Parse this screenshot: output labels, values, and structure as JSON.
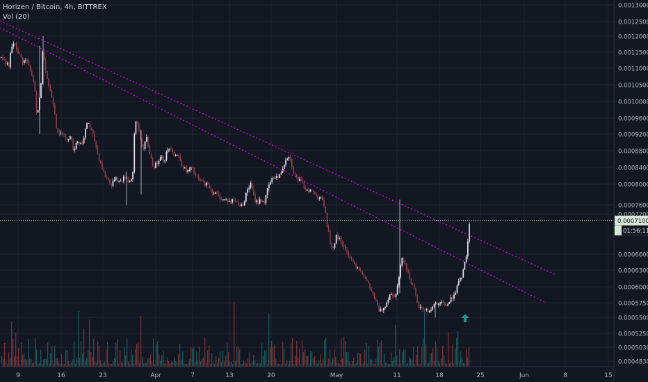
{
  "legend": {
    "title": "Horizen / Bitcoin, 4h, BITTREX",
    "volume": "Vol (20)"
  },
  "chart_data": {
    "type": "candlestick",
    "price_axis": {
      "ticks": [
        0.0013,
        0.00125,
        0.0012,
        0.00115,
        0.0011,
        0.00105,
        0.001,
        0.00096,
        0.00092,
        0.00088,
        0.00084,
        0.0008,
        0.00076,
        0.00072,
        0.00066,
        0.00063,
        0.0006,
        0.000575,
        0.00055,
        0.000525,
        0.000503,
        0.000483
      ],
      "tick_labels": [
        "0.00130000",
        "0.00125000",
        "0.00120000",
        "0.00115000",
        "0.00110000",
        "0.00105000",
        "0.00100000",
        "0.00096000",
        "0.00092000",
        "0.00088000",
        "0.00084000",
        "0.00080000",
        "0.00076000",
        "0.00072000",
        "0.00066000",
        "0.00063000",
        "0.00060000",
        "0.00057500",
        "0.00055000",
        "0.00052500",
        "0.00050300",
        "0.00048300"
      ]
    },
    "time_axis": {
      "labels": [
        "9",
        "16",
        "23",
        "Apr",
        "7",
        "13",
        "20",
        "May",
        "11",
        "18",
        "25",
        "Jun",
        "8",
        "15"
      ]
    },
    "last_price": {
      "label": "0.00071000",
      "countdown": "01:56:11",
      "value": 0.00071
    },
    "trendlines": [
      {
        "name": "upper",
        "color": "#d500f9",
        "from": {
          "date": "Mar 3",
          "price": 0.00127
        },
        "to": {
          "date": "Jun 3",
          "price": 0.00062
        }
      },
      {
        "name": "lower",
        "color": "#d500f9",
        "from": {
          "date": "Mar 9",
          "price": 0.0012
        },
        "to": {
          "date": "Jun 3",
          "price": 0.00058
        }
      }
    ],
    "marker": {
      "shape": "arrow-up",
      "color": "#26a69a",
      "date": "May 23",
      "price": 0.00055
    },
    "series": [
      {
        "name": "price",
        "path": [
          [
            0,
            0.001135
          ],
          [
            7,
            0.00112
          ],
          [
            12,
            0.0011
          ],
          [
            15,
            0.00116
          ],
          [
            19,
            0.00118
          ],
          [
            25,
            0.00115
          ],
          [
            32,
            0.00112
          ],
          [
            38,
            0.001125
          ],
          [
            44,
            0.00108
          ],
          [
            48,
            0.00106
          ],
          [
            52,
            0.00096
          ],
          [
            55,
            0.00099
          ],
          [
            58,
            0.00105
          ],
          [
            61,
            0.00117
          ],
          [
            63,
            0.00112
          ],
          [
            66,
            0.00108
          ],
          [
            70,
            0.00104
          ],
          [
            74,
            0.00101
          ],
          [
            77,
            0.00099
          ],
          [
            80,
            0.00094
          ],
          [
            85,
            0.000915
          ],
          [
            90,
            0.00093
          ],
          [
            95,
            0.0009
          ],
          [
            100,
            0.00092
          ],
          [
            105,
            0.00088
          ],
          [
            110,
            0.000905
          ],
          [
            115,
            0.000895
          ],
          [
            120,
            0.00091
          ],
          [
            125,
            0.000955
          ],
          [
            130,
            0.00093
          ],
          [
            135,
            0.000905
          ],
          [
            140,
            0.00087
          ],
          [
            145,
            0.000845
          ],
          [
            150,
            0.00082
          ],
          [
            155,
            0.00081
          ],
          [
            160,
            0.000795
          ],
          [
            165,
            0.00082
          ],
          [
            170,
            0.000805
          ],
          [
            175,
            0.00081
          ],
          [
            180,
            0.00082
          ],
          [
            185,
            0.000805
          ],
          [
            190,
            0.00082
          ],
          [
            193,
            0.00094
          ],
          [
            196,
            0.000955
          ],
          [
            200,
            0.00092
          ],
          [
            205,
            0.00088
          ],
          [
            210,
            0.00091
          ],
          [
            215,
            0.00087
          ],
          [
            220,
            0.00084
          ],
          [
            225,
            0.00085
          ],
          [
            230,
            0.00087
          ],
          [
            235,
            0.000855
          ],
          [
            240,
            0.00088
          ],
          [
            245,
            0.00089
          ],
          [
            250,
            0.00087
          ],
          [
            255,
            0.00087
          ],
          [
            260,
            0.00085
          ],
          [
            265,
            0.000835
          ],
          [
            270,
            0.00083
          ],
          [
            275,
            0.00084
          ],
          [
            280,
            0.00082
          ],
          [
            285,
            0.00081
          ],
          [
            290,
            0.000805
          ],
          [
            295,
            0.0008
          ],
          [
            300,
            0.000795
          ],
          [
            305,
            0.000785
          ],
          [
            310,
            0.00078
          ],
          [
            315,
            0.000775
          ],
          [
            320,
            0.00077
          ],
          [
            325,
            0.00077
          ],
          [
            330,
            0.000765
          ],
          [
            335,
            0.00077
          ],
          [
            340,
            0.000765
          ],
          [
            345,
            0.000755
          ],
          [
            350,
            0.000765
          ],
          [
            355,
            0.00079
          ],
          [
            360,
            0.0008
          ],
          [
            365,
            0.00077
          ],
          [
            370,
            0.000765
          ],
          [
            375,
            0.00077
          ],
          [
            380,
            0.000765
          ],
          [
            385,
            0.000795
          ],
          [
            390,
            0.00081
          ],
          [
            395,
            0.00082
          ],
          [
            400,
            0.000815
          ],
          [
            405,
            0.000835
          ],
          [
            410,
            0.00086
          ],
          [
            415,
            0.00087
          ],
          [
            418,
            0.00085
          ],
          [
            422,
            0.000825
          ],
          [
            428,
            0.00081
          ],
          [
            433,
            0.000805
          ],
          [
            438,
            0.00079
          ],
          [
            443,
            0.00079
          ],
          [
            448,
            0.000785
          ],
          [
            453,
            0.00078
          ],
          [
            458,
            0.000775
          ],
          [
            462,
            0.000775
          ],
          [
            466,
            0.00074
          ],
          [
            470,
            0.0007
          ],
          [
            474,
            0.00068
          ],
          [
            478,
            0.00067
          ],
          [
            482,
            0.000685
          ],
          [
            486,
            0.000685
          ],
          [
            490,
            0.00068
          ],
          [
            495,
            0.000665
          ],
          [
            500,
            0.00066
          ],
          [
            505,
            0.00065
          ],
          [
            510,
            0.00064
          ],
          [
            515,
            0.000635
          ],
          [
            520,
            0.000625
          ],
          [
            525,
            0.000615
          ],
          [
            530,
            0.0006
          ],
          [
            535,
            0.00059
          ],
          [
            540,
            0.000575
          ],
          [
            545,
            0.00056
          ],
          [
            550,
            0.000565
          ],
          [
            555,
            0.000575
          ],
          [
            560,
            0.00059
          ],
          [
            565,
            0.000585
          ],
          [
            570,
            0.000595
          ],
          [
            574,
            0.000625
          ],
          [
            578,
            0.00066
          ],
          [
            582,
            0.00064
          ],
          [
            586,
            0.000625
          ],
          [
            590,
            0.00061
          ],
          [
            595,
            0.000595
          ],
          [
            600,
            0.00057
          ],
          [
            605,
            0.000565
          ],
          [
            610,
            0.000565
          ],
          [
            615,
            0.00056
          ],
          [
            620,
            0.000565
          ],
          [
            625,
            0.000575
          ],
          [
            630,
            0.00057
          ],
          [
            635,
            0.000575
          ],
          [
            640,
            0.00057
          ],
          [
            645,
            0.000575
          ],
          [
            650,
            0.000585
          ],
          [
            655,
            0.000595
          ],
          [
            660,
            0.00061
          ],
          [
            665,
            0.000625
          ],
          [
            670,
            0.00066
          ],
          [
            675,
            0.00071
          ]
        ]
      }
    ]
  }
}
